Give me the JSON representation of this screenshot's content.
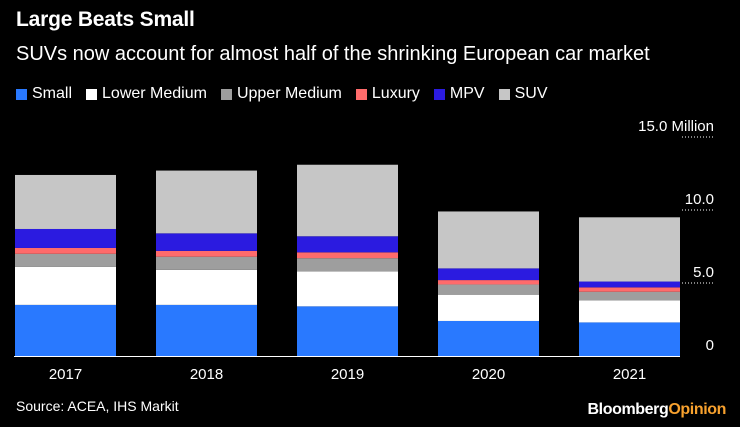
{
  "header": {
    "title": "Large Beats Small",
    "subtitle": "SUVs now account for almost half of the shrinking European car market"
  },
  "footer": {
    "source": "Source: ACEA, IHS Markit",
    "brand_main": "Bloomberg",
    "brand_accent": "Opinion"
  },
  "chart_data": {
    "type": "bar",
    "stacked": true,
    "title": "Large Beats Small",
    "subtitle": "SUVs now account for almost half of the shrinking European car market",
    "categories": [
      "2017",
      "2018",
      "2019",
      "2020",
      "2021"
    ],
    "series": [
      {
        "name": "Small",
        "color": "#2979ff",
        "values": [
          3.5,
          3.5,
          3.4,
          2.4,
          2.3
        ]
      },
      {
        "name": "Lower Medium",
        "color": "#ffffff",
        "values": [
          2.6,
          2.4,
          2.4,
          1.8,
          1.5
        ]
      },
      {
        "name": "Upper Medium",
        "color": "#9e9e9e",
        "values": [
          0.9,
          0.9,
          0.9,
          0.7,
          0.6
        ]
      },
      {
        "name": "Luxury",
        "color": "#ff6b6b",
        "values": [
          0.4,
          0.4,
          0.4,
          0.3,
          0.3
        ]
      },
      {
        "name": "MPV",
        "color": "#2b1be0",
        "values": [
          1.3,
          1.2,
          1.1,
          0.8,
          0.4
        ]
      },
      {
        "name": "SUV",
        "color": "#c6c6c6",
        "values": [
          3.7,
          4.3,
          4.9,
          3.9,
          4.4
        ]
      }
    ],
    "y_ticks": [
      {
        "value": 0,
        "label": "0"
      },
      {
        "value": 5,
        "label": "5.0"
      },
      {
        "value": 10,
        "label": "10.0"
      },
      {
        "value": 15,
        "label": "15.0 Million"
      }
    ],
    "ylim": [
      0,
      15
    ],
    "xlabel": "",
    "ylabel": "",
    "legend_position": "top-left",
    "grid": true
  }
}
